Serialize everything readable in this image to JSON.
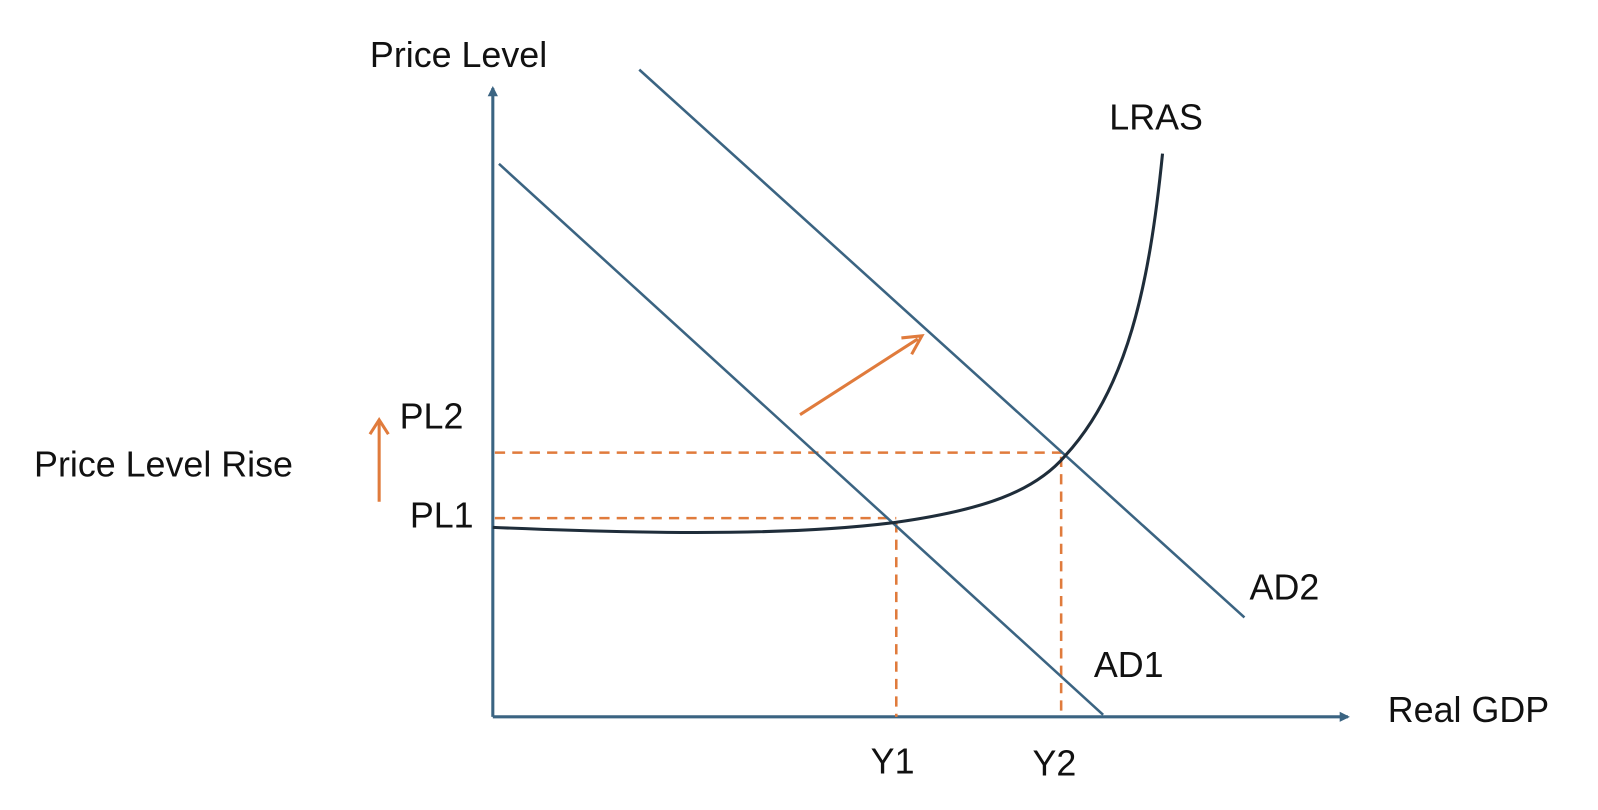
{
  "axes": {
    "y_label": "Price Level",
    "x_label": "Real GDP"
  },
  "curves": {
    "lras": "LRAS",
    "ad1": "AD1",
    "ad2": "AD2"
  },
  "price_levels": {
    "pl1": "PL1",
    "pl2": "PL2"
  },
  "outputs": {
    "y1": "Y1",
    "y2": "Y2"
  },
  "annotation": "Price Level Rise"
}
